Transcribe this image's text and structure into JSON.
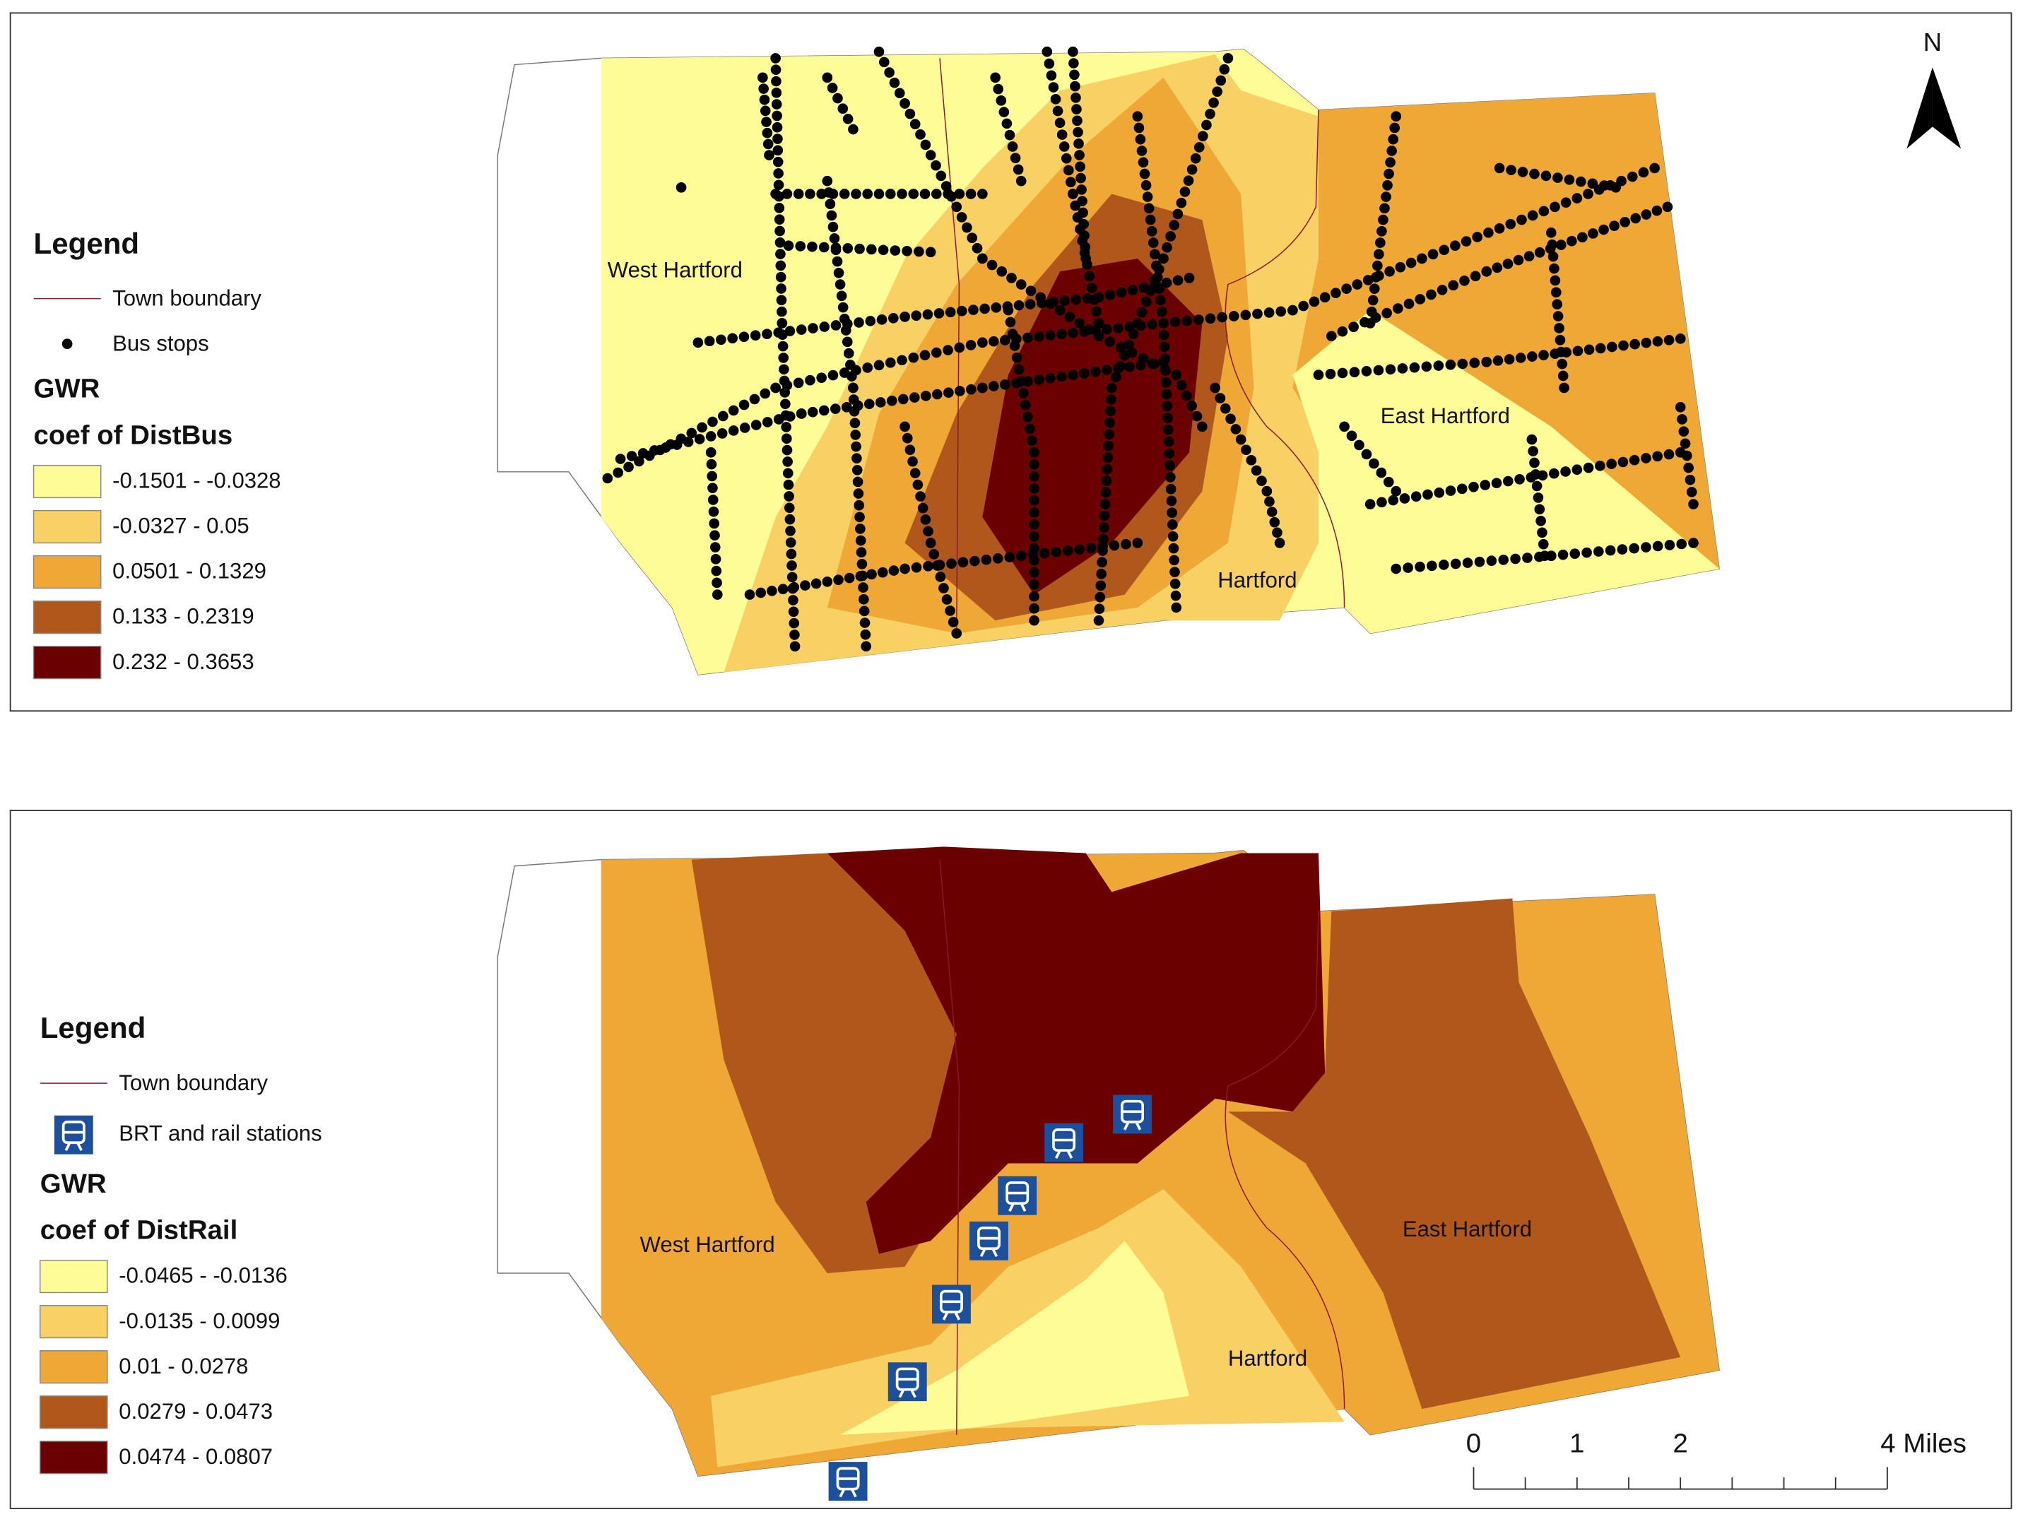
{
  "north": "N",
  "scale": {
    "labels": [
      "0",
      "1",
      "2",
      "4 Miles"
    ]
  },
  "maps": [
    {
      "legend_title": "Legend",
      "boundary_label": "Town boundary",
      "point_label": "Bus stops",
      "gwr_label": "GWR",
      "coef_label": "coef of DistBus",
      "classes": [
        {
          "label": "-0.1501 - -0.0328",
          "color": "#fdfc96"
        },
        {
          "label": "-0.0327 - 0.05",
          "color": "#f8d064"
        },
        {
          "label": "0.0501 - 0.1329",
          "color": "#efa835"
        },
        {
          "label": "0.133 - 0.2319",
          "color": "#b0571c"
        },
        {
          "label": "0.232 - 0.3653",
          "color": "#6a0000"
        }
      ],
      "places": [
        "West Hartford",
        "East Hartford",
        "Hartford"
      ]
    },
    {
      "legend_title": "Legend",
      "boundary_label": "Town boundary",
      "point_label": "BRT and rail stations",
      "gwr_label": "GWR",
      "coef_label": "coef of DistRail",
      "classes": [
        {
          "label": "-0.0465 - -0.0136",
          "color": "#fdfc96"
        },
        {
          "label": "-0.0135 - 0.0099",
          "color": "#f8d064"
        },
        {
          "label": "0.01 - 0.0278",
          "color": "#efa835"
        },
        {
          "label": "0.0279 - 0.0473",
          "color": "#b0571c"
        },
        {
          "label": "0.0474 - 0.0807",
          "color": "#6a0000"
        }
      ],
      "places": [
        "West Hartford",
        "East Hartford",
        "Hartford"
      ]
    }
  ]
}
